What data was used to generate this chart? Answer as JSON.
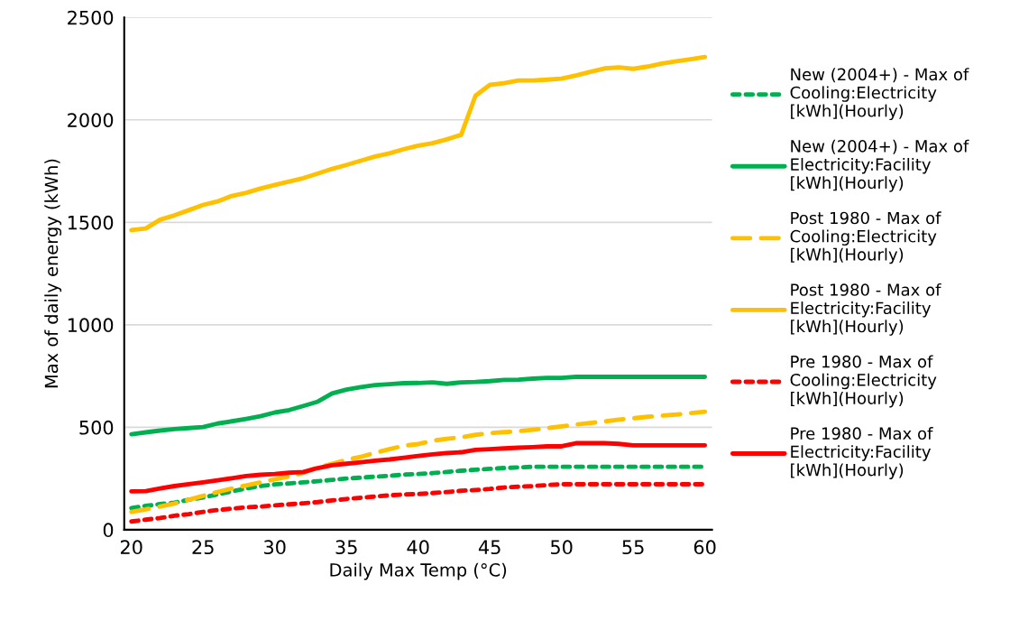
{
  "chart_data": {
    "type": "line",
    "xlabel": "Daily Max Temp (°C)",
    "ylabel": "Max of daily energy (kWh)",
    "x": [
      20,
      21,
      22,
      23,
      24,
      25,
      26,
      27,
      28,
      29,
      30,
      31,
      32,
      33,
      34,
      35,
      36,
      37,
      38,
      39,
      40,
      41,
      42,
      43,
      44,
      45,
      46,
      47,
      48,
      49,
      50,
      51,
      52,
      53,
      54,
      55,
      56,
      57,
      58,
      59,
      60
    ],
    "xlim": [
      19.5,
      60.5
    ],
    "xticks": [
      20,
      25,
      30,
      35,
      40,
      45,
      50,
      55,
      60
    ],
    "ylim": [
      0,
      2500
    ],
    "yticks": [
      0,
      500,
      1000,
      1500,
      2000,
      2500
    ],
    "grid": "y",
    "legend": "right",
    "marker": "none",
    "series": [
      {
        "name": "New (2004+) - Max of Cooling:Electricity [kWh](Hourly)",
        "color": "#00b050",
        "line_style": "dotted",
        "values": [
          106,
          116,
          125,
          132,
          146,
          157,
          172,
          187,
          201,
          213,
          221,
          226,
          231,
          237,
          243,
          250,
          254,
          259,
          263,
          269,
          272,
          276,
          282,
          288,
          293,
          297,
          301,
          304,
          307,
          307,
          307,
          307,
          307,
          307,
          307,
          307,
          307,
          307,
          307,
          307,
          307
        ]
      },
      {
        "name": "New (2004+) - Max of Electricity:Facility [kWh](Hourly)",
        "color": "#00b050",
        "line_style": "solid",
        "values": [
          466,
          475,
          484,
          491,
          496,
          501,
          518,
          529,
          541,
          554,
          572,
          584,
          604,
          625,
          665,
          684,
          696,
          706,
          710,
          715,
          716,
          719,
          712,
          719,
          721,
          725,
          731,
          732,
          737,
          741,
          741,
          746,
          746,
          746,
          746,
          746,
          746,
          746,
          746,
          746,
          746
        ]
      },
      {
        "name": "Post 1980 - Max of Cooling:Electricity [kWh](Hourly)",
        "color": "#ffc000",
        "line_style": "dashed",
        "values": [
          87,
          99,
          113,
          128,
          146,
          165,
          184,
          201,
          216,
          231,
          246,
          260,
          278,
          304,
          322,
          341,
          356,
          375,
          393,
          410,
          418,
          434,
          444,
          451,
          463,
          471,
          476,
          481,
          488,
          496,
          504,
          513,
          521,
          528,
          537,
          544,
          551,
          557,
          562,
          569,
          576
        ]
      },
      {
        "name": "Post 1980 - Max of Electricity:Facility [kWh](Hourly)",
        "color": "#ffc000",
        "line_style": "solid",
        "values": [
          1462,
          1470,
          1513,
          1534,
          1559,
          1585,
          1602,
          1629,
          1644,
          1665,
          1682,
          1699,
          1716,
          1738,
          1761,
          1780,
          1801,
          1821,
          1837,
          1857,
          1874,
          1886,
          1905,
          1927,
          2118,
          2171,
          2179,
          2192,
          2192,
          2196,
          2201,
          2217,
          2234,
          2251,
          2256,
          2249,
          2260,
          2275,
          2286,
          2296,
          2307
        ]
      },
      {
        "name": "Pre 1980 - Max of Cooling:Electricity [kWh](Hourly)",
        "color": "#ff0000",
        "line_style": "dotted",
        "values": [
          40,
          49,
          57,
          68,
          76,
          87,
          96,
          103,
          109,
          113,
          119,
          124,
          129,
          135,
          143,
          150,
          156,
          162,
          168,
          172,
          174,
          179,
          184,
          190,
          194,
          199,
          206,
          210,
          213,
          218,
          222,
          222,
          222,
          222,
          222,
          222,
          222,
          222,
          222,
          222,
          222
        ]
      },
      {
        "name": "Pre 1980 - Max of Electricity:Facility [kWh](Hourly)",
        "color": "#ff0000",
        "line_style": "solid",
        "values": [
          187,
          188,
          201,
          213,
          222,
          231,
          241,
          251,
          262,
          268,
          272,
          278,
          282,
          301,
          315,
          322,
          329,
          337,
          343,
          351,
          360,
          368,
          374,
          378,
          390,
          393,
          397,
          400,
          403,
          407,
          407,
          422,
          422,
          422,
          419,
          412,
          412,
          412,
          412,
          412,
          412
        ]
      }
    ]
  }
}
